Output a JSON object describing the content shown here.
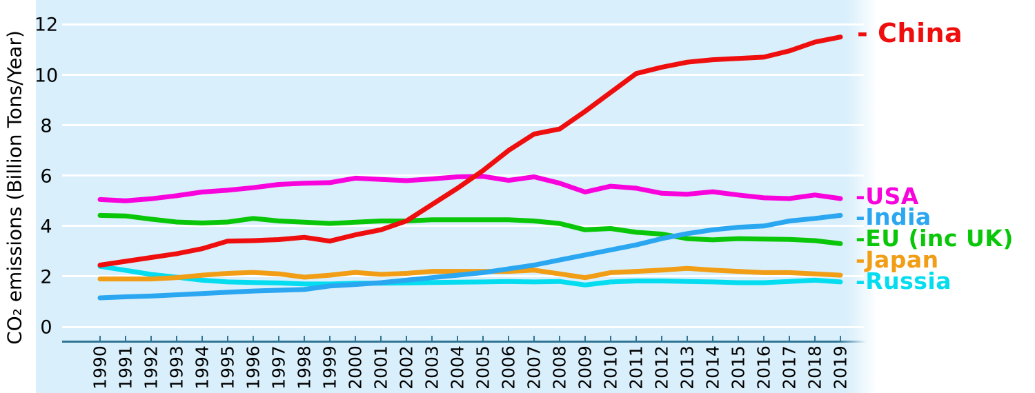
{
  "chart_data": {
    "type": "line",
    "title": "",
    "xlabel": "",
    "ylabel": "CO₂ emissions (Billion Tons/Year)",
    "x": [
      1990,
      1991,
      1992,
      1993,
      1994,
      1995,
      1996,
      1997,
      1998,
      1999,
      2000,
      2001,
      2002,
      2003,
      2004,
      2005,
      2006,
      2007,
      2008,
      2009,
      2010,
      2011,
      2012,
      2013,
      2014,
      2015,
      2016,
      2017,
      2018,
      2019
    ],
    "yticks": [
      0,
      2,
      4,
      6,
      8,
      10,
      12
    ],
    "ylim": [
      0,
      12.7
    ],
    "grid": "horizontal-white-on-lightblue",
    "legend_position": "right-edge-color-coded",
    "background_color": "#d9effb",
    "gridline_color": "#ffffff",
    "axis_color": "#2e7494",
    "text_color": "#000000",
    "series": [
      {
        "name": "China",
        "legend_label": "- China",
        "color": "#ef0e0e",
        "values": [
          2.45,
          2.6,
          2.75,
          2.9,
          3.1,
          3.4,
          3.42,
          3.46,
          3.55,
          3.4,
          3.65,
          3.85,
          4.2,
          4.85,
          5.5,
          6.2,
          7.0,
          7.65,
          7.85,
          8.55,
          9.3,
          10.05,
          10.3,
          10.5,
          10.6,
          10.65,
          10.7,
          10.95,
          11.3,
          11.5
        ]
      },
      {
        "name": "USA",
        "legend_label": "-USA",
        "color": "#f903dd",
        "values": [
          5.05,
          5.0,
          5.08,
          5.2,
          5.35,
          5.42,
          5.52,
          5.65,
          5.7,
          5.72,
          5.9,
          5.85,
          5.8,
          5.87,
          5.95,
          5.97,
          5.81,
          5.95,
          5.7,
          5.35,
          5.58,
          5.5,
          5.3,
          5.26,
          5.36,
          5.23,
          5.12,
          5.09,
          5.23,
          5.09
        ]
      },
      {
        "name": "India",
        "legend_label": "-India",
        "color": "#2aa7f0",
        "values": [
          1.15,
          1.19,
          1.22,
          1.27,
          1.32,
          1.37,
          1.42,
          1.45,
          1.48,
          1.62,
          1.68,
          1.75,
          1.85,
          1.95,
          2.05,
          2.15,
          2.3,
          2.45,
          2.65,
          2.85,
          3.05,
          3.25,
          3.5,
          3.7,
          3.85,
          3.95,
          4.0,
          4.2,
          4.3,
          4.42
        ]
      },
      {
        "name": "EU (inc UK)",
        "legend_label": "-EU (inc UK)",
        "color": "#09c609",
        "values": [
          4.42,
          4.4,
          4.27,
          4.16,
          4.12,
          4.16,
          4.3,
          4.2,
          4.15,
          4.1,
          4.15,
          4.2,
          4.2,
          4.25,
          4.25,
          4.25,
          4.25,
          4.2,
          4.1,
          3.85,
          3.9,
          3.75,
          3.68,
          3.5,
          3.45,
          3.5,
          3.48,
          3.47,
          3.42,
          3.3
        ]
      },
      {
        "name": "Japan",
        "legend_label": "-Japan",
        "color": "#f19d15",
        "values": [
          1.9,
          1.9,
          1.9,
          1.95,
          2.05,
          2.12,
          2.16,
          2.1,
          1.97,
          2.05,
          2.16,
          2.08,
          2.12,
          2.2,
          2.2,
          2.2,
          2.2,
          2.25,
          2.1,
          1.95,
          2.15,
          2.2,
          2.25,
          2.32,
          2.25,
          2.2,
          2.15,
          2.15,
          2.1,
          2.05
        ]
      },
      {
        "name": "Russia",
        "legend_label": "-Russia",
        "color": "#04dcf0",
        "values": [
          2.4,
          2.24,
          2.08,
          1.97,
          1.85,
          1.78,
          1.76,
          1.74,
          1.7,
          1.7,
          1.73,
          1.73,
          1.74,
          1.76,
          1.77,
          1.78,
          1.8,
          1.78,
          1.8,
          1.66,
          1.78,
          1.82,
          1.82,
          1.8,
          1.78,
          1.75,
          1.75,
          1.8,
          1.85,
          1.78
        ]
      }
    ]
  }
}
